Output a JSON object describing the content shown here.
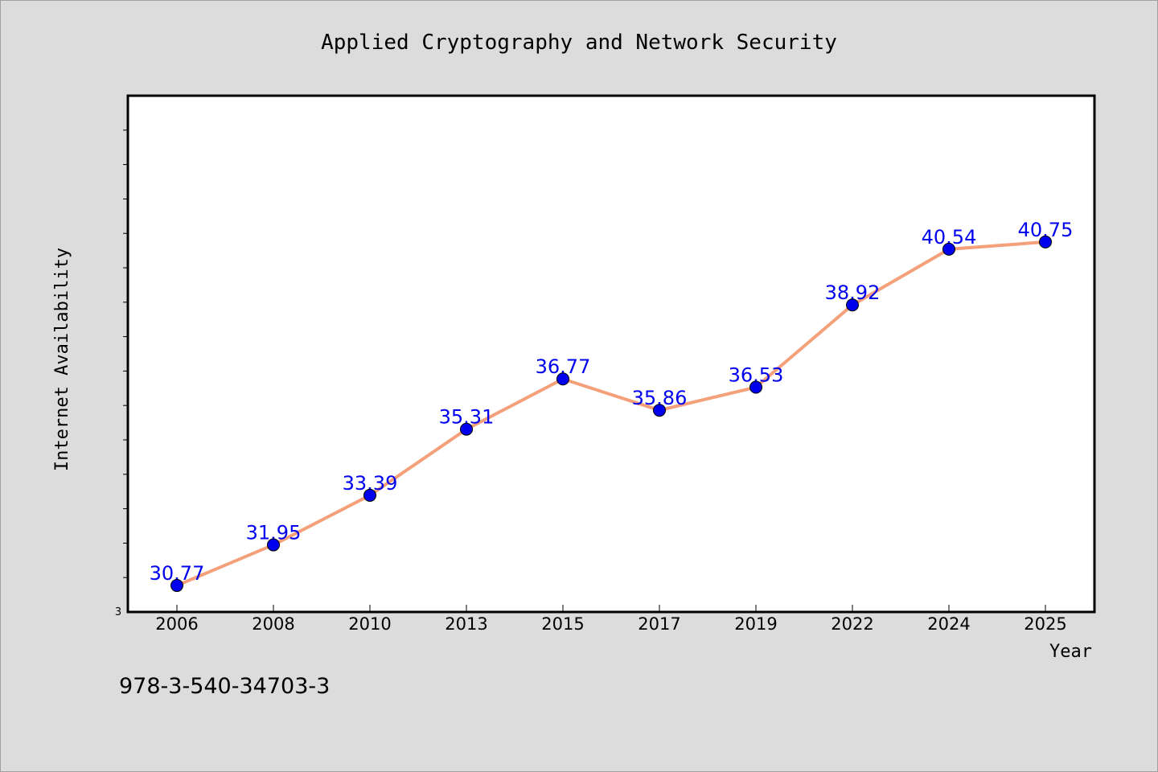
{
  "chart_data": {
    "type": "line",
    "title": "Applied Cryptography and Network Security",
    "xlabel": "Year",
    "ylabel": "Internet Availability",
    "categories": [
      "2006",
      "2008",
      "2010",
      "2013",
      "2015",
      "2017",
      "2019",
      "2022",
      "2024",
      "2025"
    ],
    "series": [
      {
        "values": [
          30.77,
          31.95,
          33.39,
          35.31,
          36.77,
          35.86,
          36.53,
          38.92,
          40.54,
          40.75
        ],
        "labels": [
          "30.77",
          "31.95",
          "33.39",
          "35.31",
          "36.77",
          "35.86",
          "36.53",
          "38.92",
          "40.54",
          "40.75"
        ]
      }
    ],
    "ylim": [
      30,
      45
    ],
    "ytick_label_shown": "3",
    "grid": false,
    "legend": "none"
  },
  "footer_text": "978-3-540-34703-3",
  "colors": {
    "background": "#dcdcdc",
    "plot_background": "#ffffff",
    "line": "#f4a07a",
    "marker": "#0000ee",
    "data_label": "#0000ee"
  }
}
